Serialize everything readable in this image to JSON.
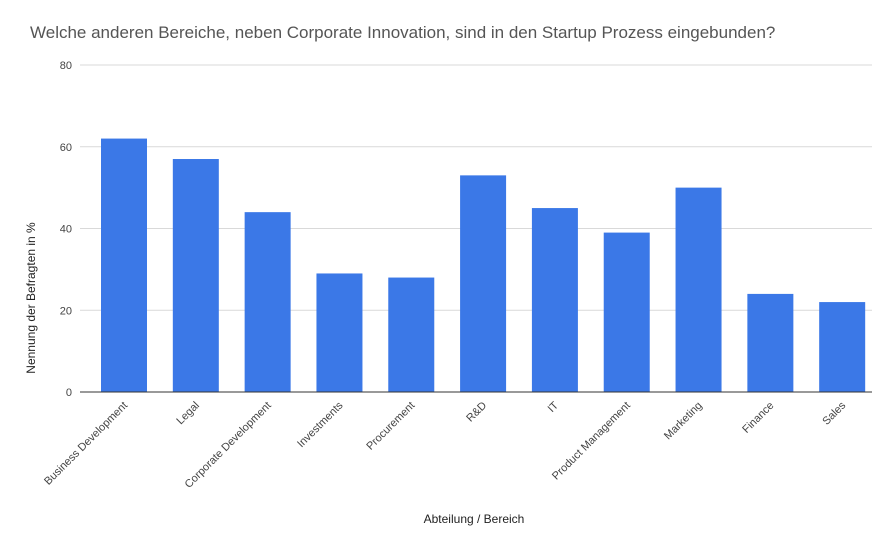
{
  "chart_data": {
    "type": "bar",
    "title": "Welche anderen Bereiche, neben Corporate Innovation, sind in den Startup Prozess eingebunden?",
    "xlabel": "Abteilung / Bereich",
    "ylabel": "Nennung der Befragten in %",
    "categories": [
      "Business Development",
      "Legal",
      "Corporate Development",
      "Investments",
      "Procurement",
      "R&D",
      "IT",
      "Product Management",
      "Marketing",
      "Finance",
      "Sales"
    ],
    "values": [
      62,
      57,
      44,
      29,
      28,
      53,
      45,
      39,
      50,
      24,
      22
    ],
    "ylim": [
      0,
      80
    ],
    "yticks": [
      0,
      20,
      40,
      60,
      80
    ],
    "grid": true,
    "legend": "none",
    "bar_color": "#3b78e7",
    "grid_color": "#d9d9d9",
    "axis_color": "#333333"
  }
}
